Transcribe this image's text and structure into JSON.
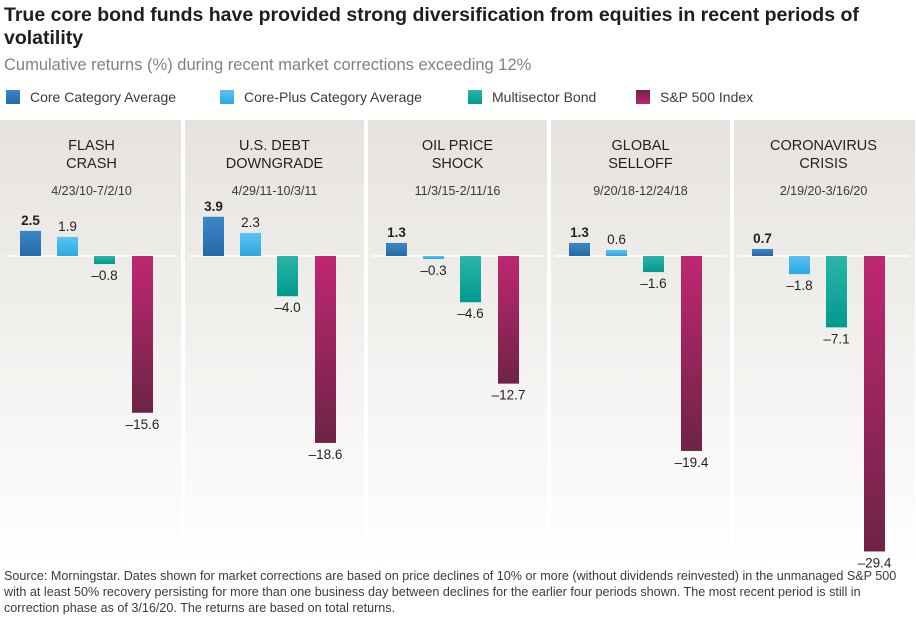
{
  "title": "True core bond funds have provided strong diversification from equities in recent periods of volatility",
  "subtitle": "Cumulative returns (%) during recent market corrections exceeding 12%",
  "colors": {
    "panel_top": "#e6e3de",
    "panel_bottom": "#ffffff",
    "divider": "#ffffff"
  },
  "chart_data": {
    "type": "bar",
    "unit": "%",
    "series": [
      {
        "name": "Core Category Average",
        "color": "#236aa8",
        "color_light": "#3d86c6"
      },
      {
        "name": "Core-Plus Category Average",
        "color": "#2ba8e5",
        "color_light": "#59c3f0"
      },
      {
        "name": "Multisector Bond",
        "color": "#009a8e",
        "color_light": "#2cb5a8"
      },
      {
        "name": "S&P 500 Index",
        "color": "#c02772",
        "color_light": "#6e2346"
      }
    ],
    "panels": [
      {
        "name_lines": [
          "FLASH",
          "CRASH"
        ],
        "dates": "4/23/10-7/2/10",
        "values": [
          2.5,
          1.9,
          -0.8,
          -15.6
        ],
        "labels": [
          "2.5",
          "1.9",
          "–0.8",
          "–15.6"
        ]
      },
      {
        "name_lines": [
          "U.S. DEBT",
          "DOWNGRADE"
        ],
        "dates": "4/29/11-10/3/11",
        "values": [
          3.9,
          2.3,
          -4.0,
          -18.6
        ],
        "labels": [
          "3.9",
          "2.3",
          "–4.0",
          "–18.6"
        ]
      },
      {
        "name_lines": [
          "OIL PRICE",
          "SHOCK"
        ],
        "dates": "11/3/15-2/11/16",
        "values": [
          1.3,
          -0.3,
          -4.6,
          -12.7
        ],
        "labels": [
          "1.3",
          "–0.3",
          "–4.6",
          "–12.7"
        ]
      },
      {
        "name_lines": [
          "GLOBAL",
          "SELLOFF"
        ],
        "dates": "9/20/18-12/24/18",
        "values": [
          1.3,
          0.6,
          -1.6,
          -19.4
        ],
        "labels": [
          "1.3",
          "0.6",
          "–1.6",
          "–19.4"
        ]
      },
      {
        "name_lines": [
          "CORONAVIRUS",
          "CRISIS"
        ],
        "dates": "2/19/20-3/16/20",
        "values": [
          0.7,
          -1.8,
          -7.1,
          -29.4
        ],
        "labels": [
          "0.7",
          "–1.8",
          "–7.1",
          "–29.4"
        ]
      }
    ]
  },
  "source": "Source: Morningstar. Dates shown for market corrections are based on price declines of 10% or more (without dividends reinvested) in the unmanaged S&P 500 with at least 50% recovery persisting for more than one business day between declines for the earlier four periods shown. The most recent period is still in correction phase as of 3/16/20. The returns are based on total returns."
}
